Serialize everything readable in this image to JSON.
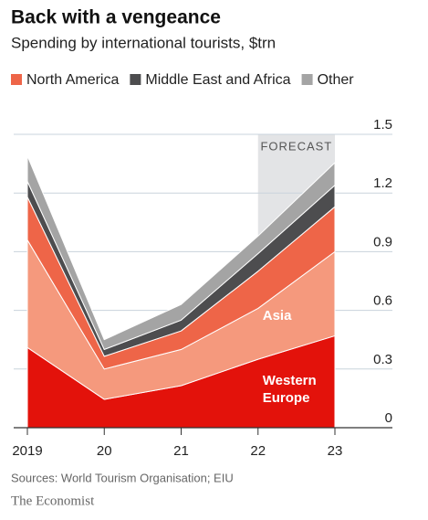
{
  "chart_data": {
    "type": "stacked_area",
    "title": "Back with a vengeance",
    "subtitle": "Spending by international tourists, $trn",
    "categories": [
      "2019",
      "20",
      "21",
      "22",
      "23"
    ],
    "series": [
      {
        "name": "Western Europe",
        "color": "#e3120b",
        "legend": false,
        "values": [
          0.41,
          0.145,
          0.215,
          0.35,
          0.47
        ]
      },
      {
        "name": "Asia",
        "color": "#f5997d",
        "legend": false,
        "values": [
          0.55,
          0.155,
          0.185,
          0.26,
          0.43
        ]
      },
      {
        "name": "North America",
        "color": "#ee6548",
        "legend": true,
        "values": [
          0.22,
          0.065,
          0.095,
          0.19,
          0.23
        ]
      },
      {
        "name": "Middle East and Africa",
        "color": "#4d4d4f",
        "legend": true,
        "values": [
          0.08,
          0.035,
          0.055,
          0.09,
          0.11
        ]
      },
      {
        "name": "Other",
        "color": "#a4a4a4",
        "legend": true,
        "values": [
          0.13,
          0.05,
          0.08,
          0.09,
          0.115
        ]
      }
    ],
    "ylim": [
      0,
      1.5
    ],
    "yticks": [
      1.5,
      1.2,
      0.9,
      0.6,
      0.3,
      0
    ],
    "grid": true,
    "forecast": {
      "label": "FORECAST",
      "from": "22"
    },
    "source": "Sources: World Tourism Organisation; EIU",
    "brand": "The Economist"
  }
}
